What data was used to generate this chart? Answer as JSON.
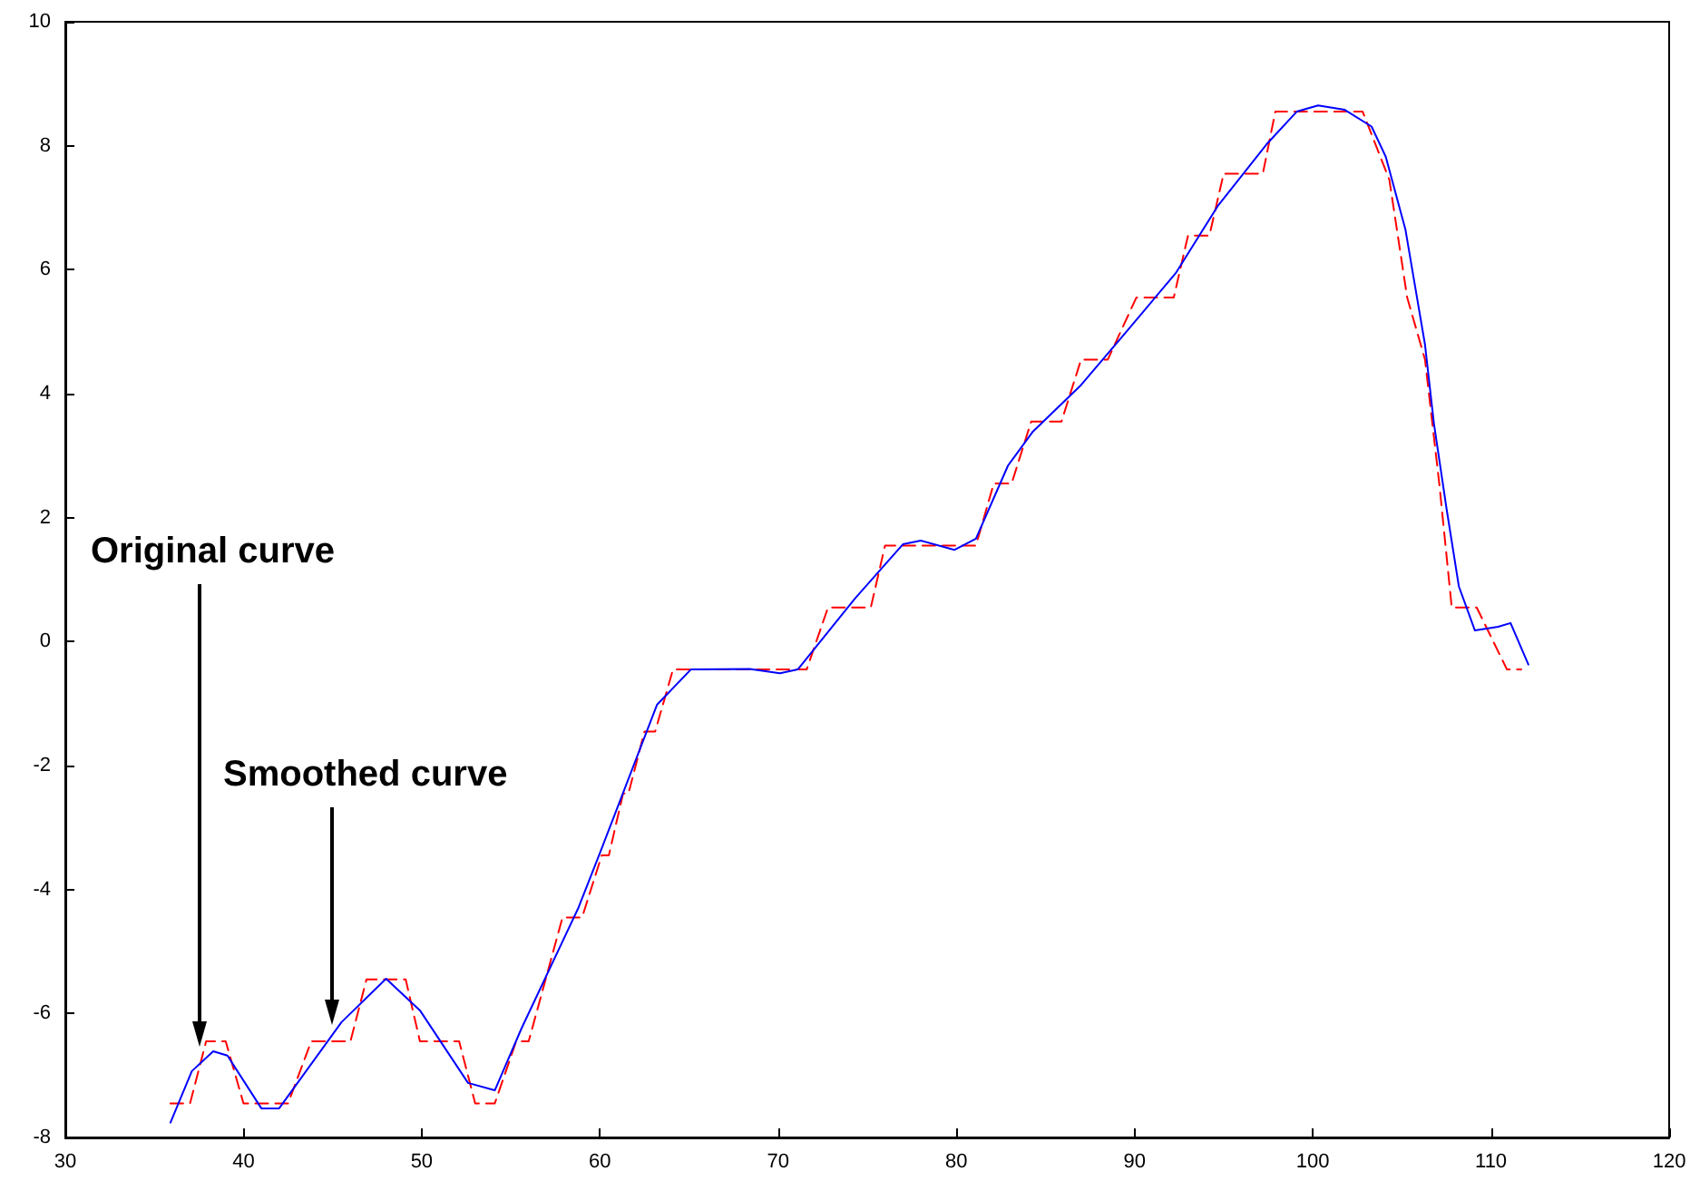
{
  "chart_data": {
    "type": "line",
    "series": [
      {
        "color": "#ff0000",
        "line_style": "dashed",
        "x": [
          35.9,
          37.0,
          37.9,
          39.0,
          40.0,
          42.5,
          43.8,
          46.0,
          46.9,
          49.1,
          49.9,
          52.1,
          53.0,
          54.1,
          55.3,
          56.0,
          57.9,
          59.0,
          60.1,
          60.5,
          61.3,
          61.6,
          62.5,
          63.1,
          64.1,
          71.6,
          72.8,
          75.2,
          76.0,
          81.1,
          82.1,
          83.1,
          84.2,
          85.9,
          87.0,
          88.5,
          90.1,
          92.2,
          93.0,
          94.2,
          95.0,
          97.2,
          97.9,
          102.8,
          104.3,
          105.3,
          106.3,
          107.1,
          107.8,
          109.2,
          110.9,
          111.7
        ],
        "values": [
          -7.45,
          -7.45,
          -6.45,
          -6.45,
          -7.45,
          -7.45,
          -6.45,
          -6.45,
          -5.45,
          -5.45,
          -6.45,
          -6.45,
          -7.45,
          -7.45,
          -6.45,
          -6.45,
          -4.45,
          -4.45,
          -3.45,
          -3.45,
          -2.45,
          -2.45,
          -1.45,
          -1.45,
          -0.45,
          -0.45,
          0.55,
          0.55,
          1.55,
          1.55,
          2.55,
          2.55,
          3.55,
          3.55,
          4.55,
          4.55,
          5.55,
          5.55,
          6.55,
          6.55,
          7.55,
          7.55,
          8.55,
          8.55,
          7.45,
          5.55,
          4.55,
          2.55,
          0.55,
          0.55,
          -0.45,
          -0.45
        ]
      },
      {
        "color": "#0000ff",
        "line_style": "solid",
        "x": [
          35.9,
          37.1,
          38.3,
          39.1,
          41.0,
          42.0,
          45.5,
          48.0,
          49.9,
          52.6,
          54.1,
          55.6,
          58.8,
          60.0,
          63.2,
          65.1,
          68.4,
          70.1,
          71.1,
          74.3,
          77.0,
          78.0,
          79.9,
          81.1,
          82.9,
          84.3,
          87.0,
          89.6,
          92.3,
          94.7,
          97.4,
          99.1,
          100.3,
          101.8,
          103.3,
          104.1,
          105.2,
          106.3,
          106.8,
          107.5,
          108.2,
          109.1,
          110.4,
          111.1,
          112.1
        ],
        "values": [
          -7.76,
          -6.93,
          -6.61,
          -6.68,
          -7.53,
          -7.53,
          -6.14,
          -5.44,
          -5.95,
          -7.12,
          -7.24,
          -6.24,
          -4.29,
          -3.41,
          -1.02,
          -0.45,
          -0.44,
          -0.51,
          -0.45,
          0.69,
          1.57,
          1.63,
          1.48,
          1.66,
          2.84,
          3.39,
          4.14,
          5.02,
          5.94,
          7.04,
          8.02,
          8.55,
          8.65,
          8.58,
          8.31,
          7.82,
          6.65,
          4.79,
          3.52,
          2.16,
          0.89,
          0.18,
          0.24,
          0.3,
          -0.37
        ]
      }
    ],
    "xlim": [
      30,
      120
    ],
    "xticks": [
      30,
      40,
      50,
      60,
      70,
      80,
      90,
      100,
      110,
      120
    ],
    "ylim": [
      -8,
      10
    ],
    "yticks": [
      -8,
      -6,
      -4,
      -2,
      0,
      2,
      4,
      6,
      8,
      10
    ],
    "grid": false,
    "marker": "none",
    "annotations": [
      "Original curve",
      "Smoothed curve"
    ]
  }
}
